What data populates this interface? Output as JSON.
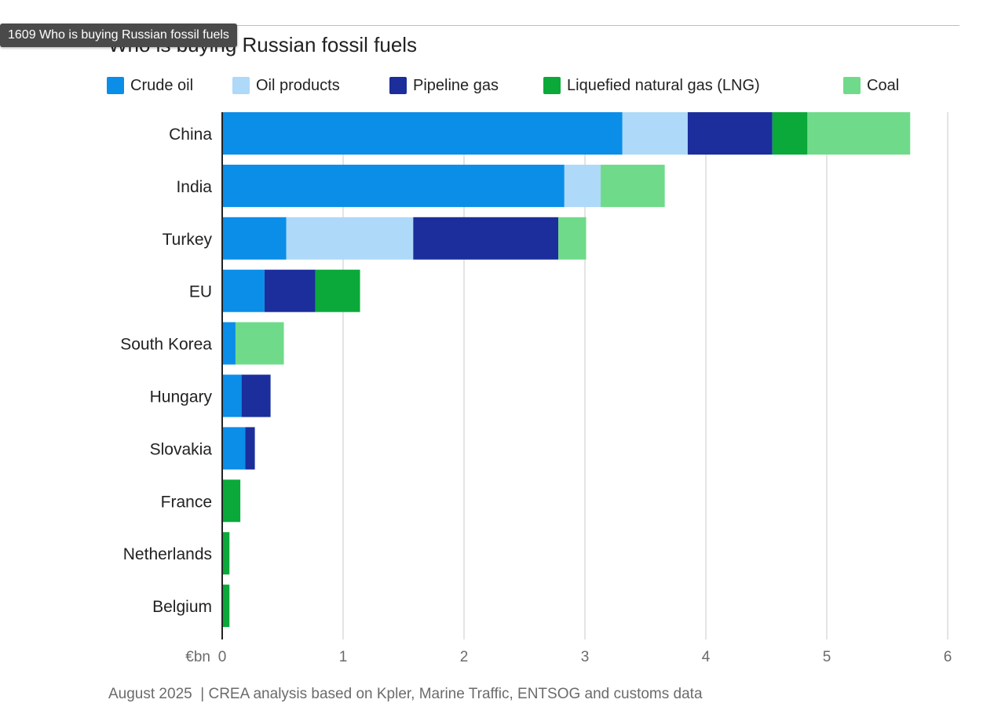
{
  "tooltip": "1609 Who is buying Russian fossil fuels",
  "title": "Who is buying Russian fossil fuels",
  "footer": "August 2025  | CREA analysis based on Kpler, Marine Traffic, ENTSOG and customs data",
  "chart_data": {
    "type": "bar",
    "orientation": "horizontal",
    "stacked": true,
    "title": "Who is buying Russian fossil fuels",
    "xlabel": "€bn",
    "ylabel": "",
    "xlim": [
      0,
      6
    ],
    "xticks": [
      "0",
      "1",
      "2",
      "3",
      "4",
      "5",
      "6"
    ],
    "grid": true,
    "legend_position": "top",
    "categories": [
      "China",
      "India",
      "Turkey",
      "EU",
      "South Korea",
      "Hungary",
      "Slovakia",
      "France",
      "Netherlands",
      "Belgium"
    ],
    "series": [
      {
        "name": "Crude oil",
        "color": "#0a8ee8",
        "values": [
          3.31,
          2.83,
          0.53,
          0.35,
          0.11,
          0.16,
          0.19,
          0,
          0,
          0
        ]
      },
      {
        "name": "Oil products",
        "color": "#aed9f8",
        "values": [
          0.54,
          0.3,
          1.05,
          0,
          0,
          0,
          0,
          0,
          0,
          0
        ]
      },
      {
        "name": "Pipeline gas",
        "color": "#1b2e9c",
        "values": [
          0.7,
          0,
          1.2,
          0.42,
          0,
          0.24,
          0.08,
          0,
          0,
          0
        ]
      },
      {
        "name": "Liquefied natural gas (LNG)",
        "color": "#0aa93a",
        "values": [
          0.29,
          0,
          0,
          0.37,
          0,
          0,
          0,
          0.15,
          0.06,
          0.06
        ]
      },
      {
        "name": "Coal",
        "color": "#6fdb8a",
        "values": [
          0.85,
          0.53,
          0.23,
          0,
          0.4,
          0,
          0,
          0,
          0,
          0
        ]
      }
    ]
  }
}
